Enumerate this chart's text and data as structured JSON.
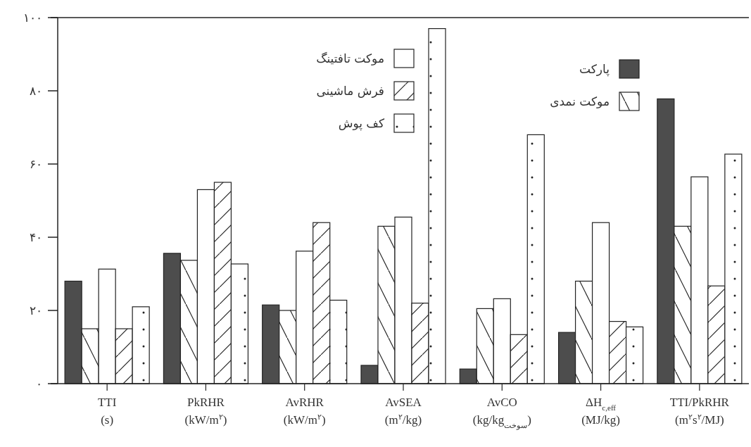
{
  "chart_data": {
    "type": "bar",
    "categories": [
      "TTI\n(s)",
      "PkRHR\n(kW/m$^{۲}$)",
      "AvRHR\n(kW/m$^{۲}$)",
      "AvSEA\n(m$^{۲}$/kg)",
      "AvCO\n(kg/kg$_{سوخت}$)",
      "ΔH$_{c,eff}$\n(MJ/kg)",
      "TTI/PkRHR\n(m$^{۲}$s$^{۲}$/MJ)"
    ],
    "series": [
      {
        "name": "پارکت",
        "color": "#4d4d4d",
        "values": [
          28,
          35.6,
          21.5,
          5,
          4,
          14,
          77.8
        ]
      },
      {
        "name": "موکت نمدی",
        "color": "#222222",
        "values": [
          15,
          33.7,
          20,
          43,
          20.5,
          28,
          43
        ]
      },
      {
        "name": "موکت تافتینگ",
        "color": "#ffffff",
        "values": [
          31.3,
          53,
          36.2,
          45.5,
          23.2,
          44,
          56.5
        ]
      },
      {
        "name": "فرش ماشینی",
        "color": "#222222",
        "values": [
          15,
          55,
          44,
          22,
          13.4,
          17,
          26.7
        ]
      },
      {
        "name": "کف پوش",
        "color": "#222222",
        "values": [
          21,
          32.7,
          22.8,
          97,
          68,
          15.5,
          62.7
        ]
      }
    ],
    "ylim": [
      0,
      100
    ],
    "yticks": [
      {
        "value": 0,
        "label": "۰"
      },
      {
        "value": 20,
        "label": "۲۰"
      },
      {
        "value": 40,
        "label": "۴۰"
      },
      {
        "value": 60,
        "label": "۶۰"
      },
      {
        "value": 80,
        "label": "۸۰"
      },
      {
        "value": 100,
        "label": "۱۰۰"
      }
    ],
    "grid": false,
    "legend": "top right"
  }
}
